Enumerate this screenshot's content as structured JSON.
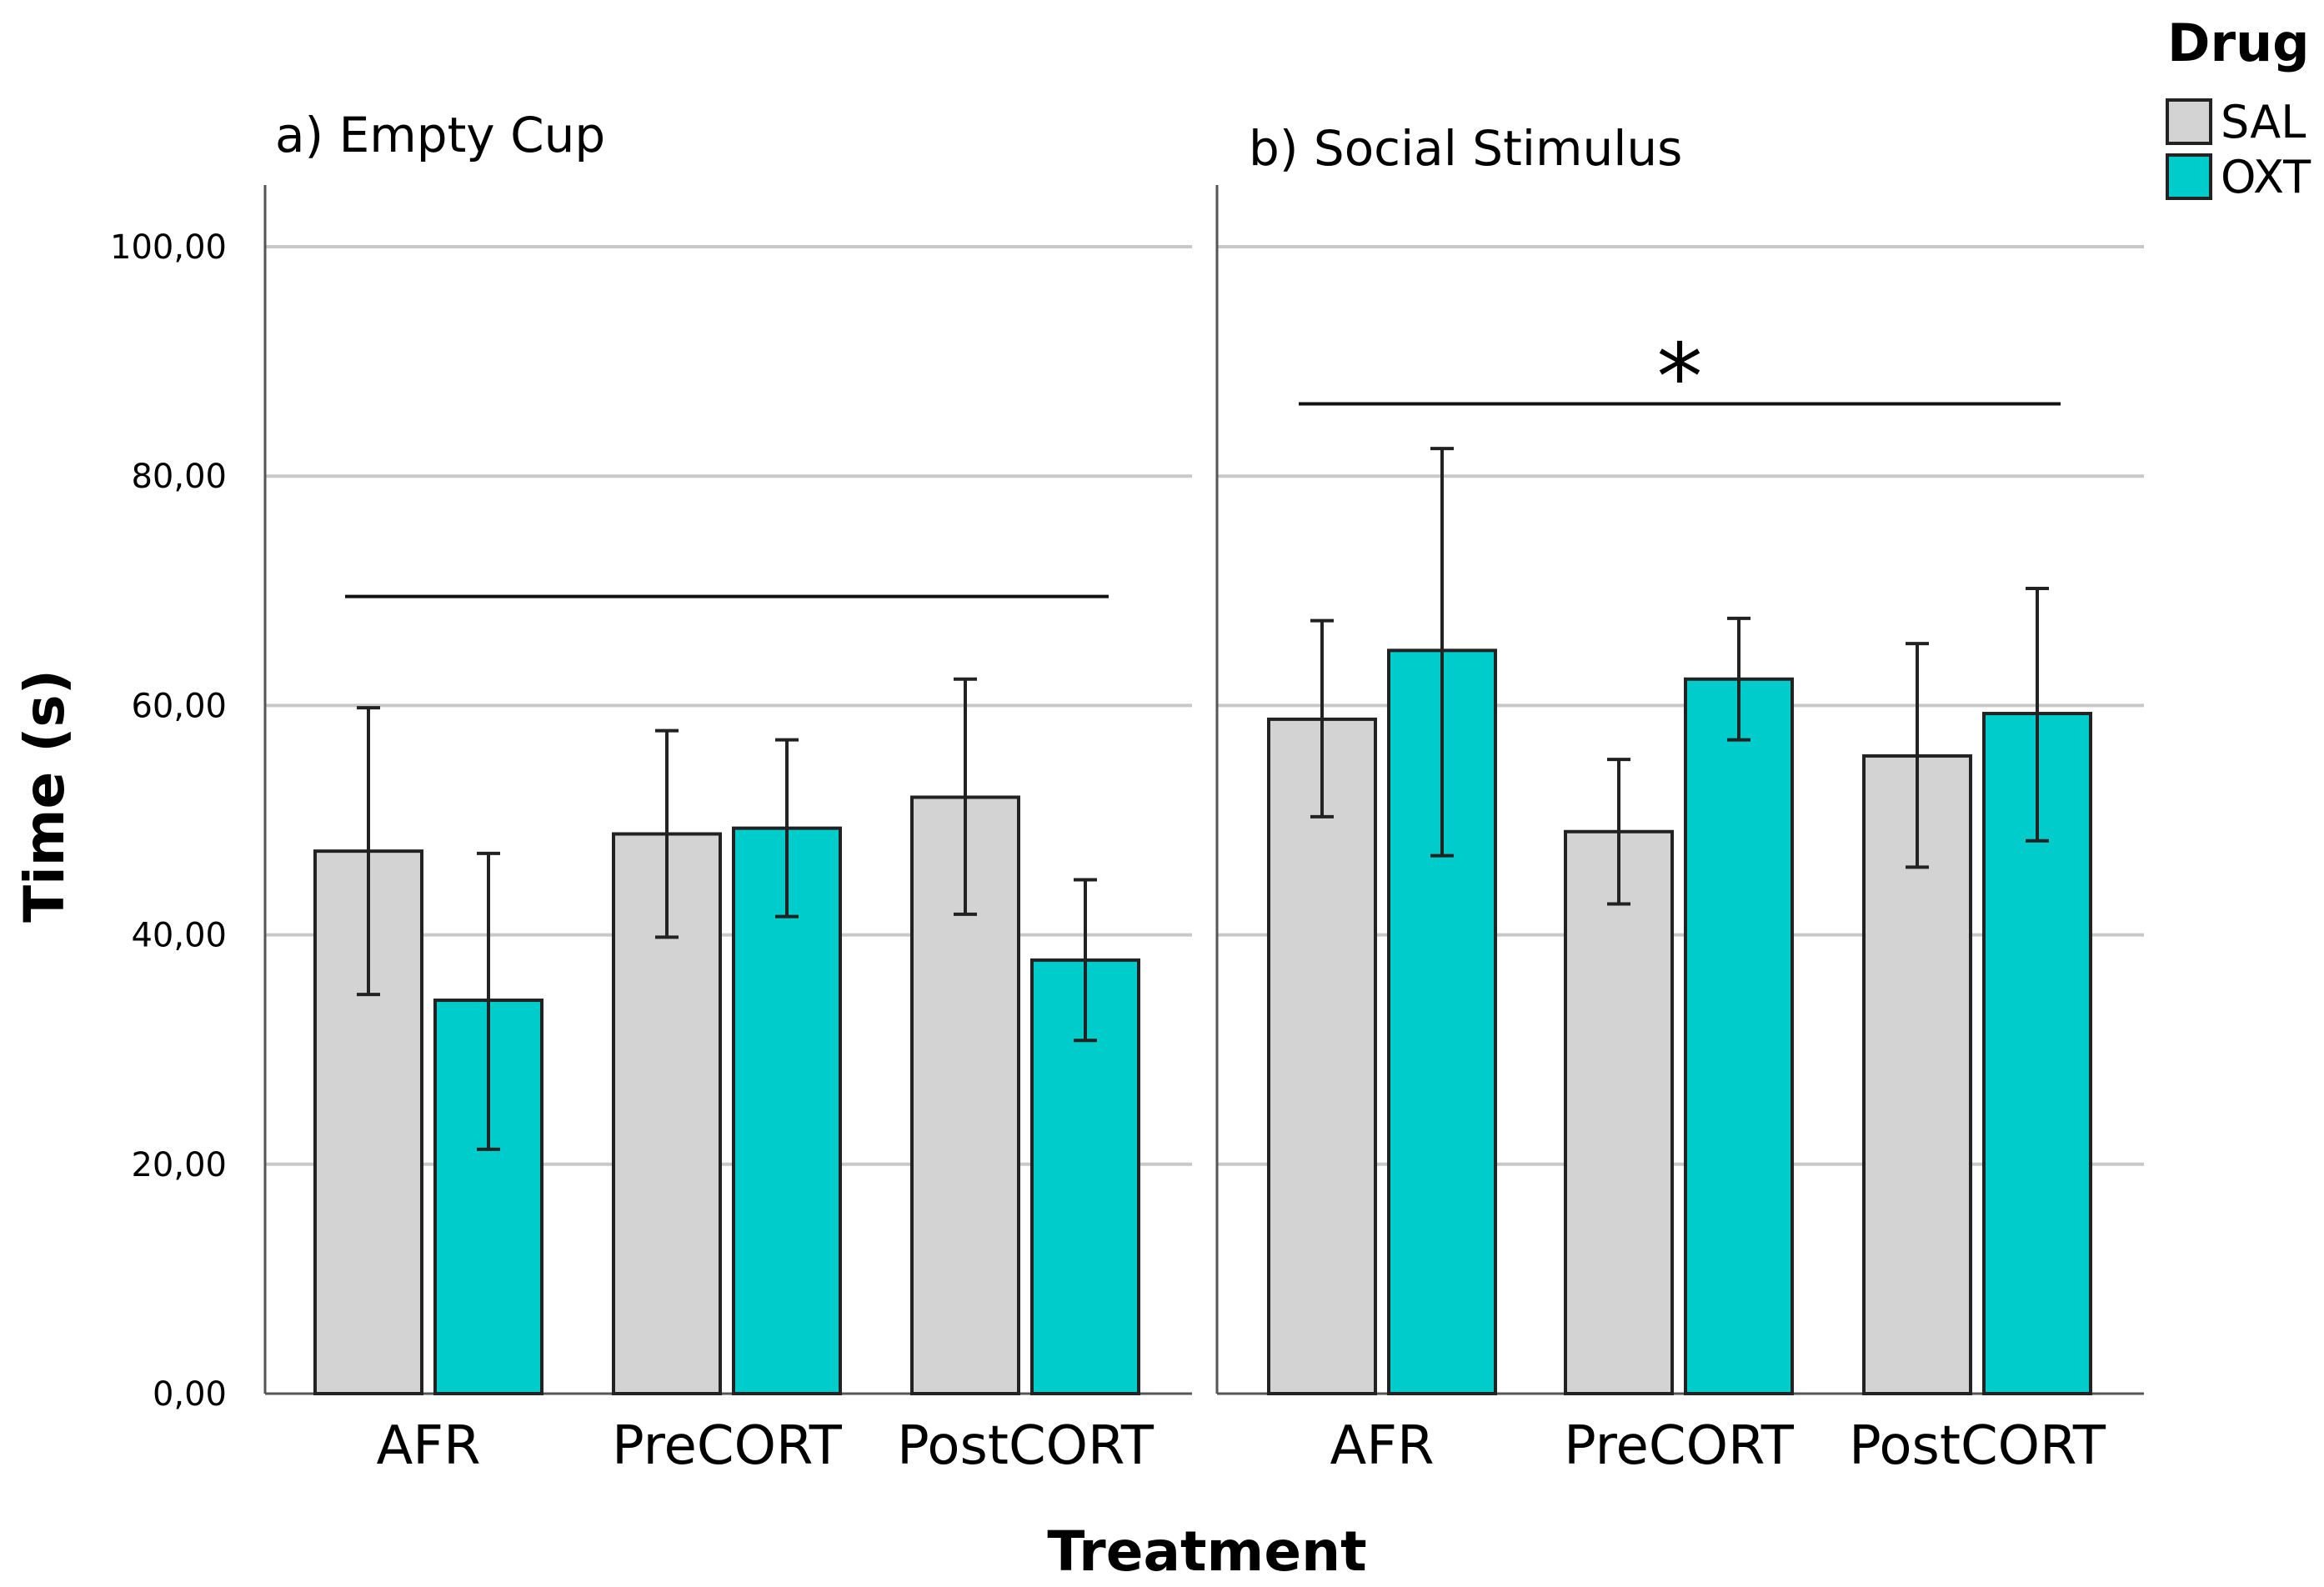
{
  "chart_data": {
    "type": "bar",
    "ylabel": "Time (s)",
    "xlabel": "Treatment",
    "ylim": [
      0,
      105
    ],
    "yticks": [
      "0,00",
      "20,00",
      "40,00",
      "60,00",
      "80,00",
      "100,00"
    ],
    "grid": true,
    "legend": {
      "title": "Drug",
      "position": "top-right",
      "entries": [
        {
          "name": "SAL",
          "color": "#d3d3d3"
        },
        {
          "name": "OXT",
          "color": "#00cccc"
        }
      ]
    },
    "categories": [
      "AFR",
      "PreCORT",
      "PostCORT"
    ],
    "panels": [
      {
        "title": "a) Empty Cup",
        "significance": {
          "line_y": 69.5,
          "label": ""
        },
        "series": [
          {
            "name": "SAL",
            "values": [
              47.3,
              48.8,
              52.0
            ],
            "err_low": [
              34.8,
              39.8,
              41.8
            ],
            "err_high": [
              59.8,
              57.8,
              62.3
            ]
          },
          {
            "name": "OXT",
            "values": [
              34.3,
              49.3,
              37.8
            ],
            "err_low": [
              21.3,
              41.6,
              30.8
            ],
            "err_high": [
              47.1,
              57.0,
              44.8
            ]
          }
        ]
      },
      {
        "title": "b) Social Stimulus",
        "significance": {
          "line_y": 86.3,
          "label": "*"
        },
        "series": [
          {
            "name": "SAL",
            "values": [
              58.8,
              49.0,
              55.6
            ],
            "err_low": [
              50.3,
              42.7,
              45.9
            ],
            "err_high": [
              67.4,
              55.3,
              65.4
            ]
          },
          {
            "name": "OXT",
            "values": [
              64.8,
              62.3,
              59.3
            ],
            "err_low": [
              46.9,
              57.0,
              48.2
            ],
            "err_high": [
              82.4,
              67.6,
              70.2
            ]
          }
        ]
      }
    ]
  }
}
